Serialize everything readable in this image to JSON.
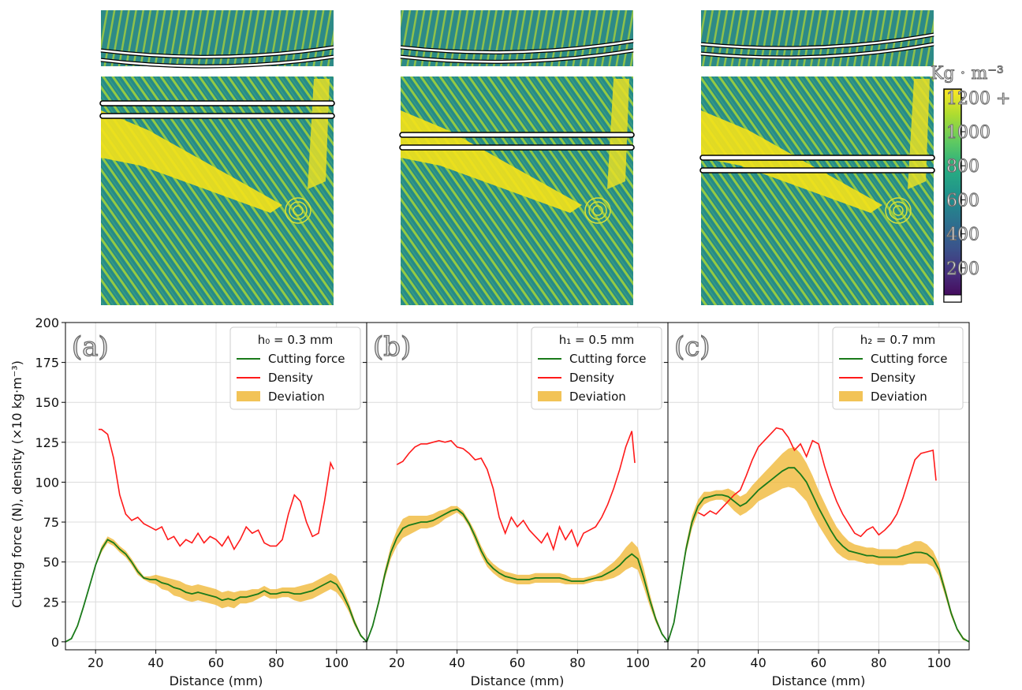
{
  "figure": {
    "ylabel": "Cutting force (N), density (×10 kg·m⁻³)",
    "colorbar": {
      "unit": "Kg · m⁻³",
      "ticks": [
        "1200 +",
        "1000",
        "800",
        "600",
        "400",
        "200"
      ],
      "tick_values": [
        1200,
        1000,
        800,
        600,
        400,
        200
      ],
      "range": [
        0,
        1250
      ],
      "colormap": "viridis"
    },
    "colors": {
      "cutting_force": "#1a7a1a",
      "density": "#ff1a1a",
      "deviation": "#f0b93a"
    }
  },
  "chart_data": [
    {
      "type": "line",
      "panel_label": "(a)",
      "legend_title": "h₀ = 0.3 mm",
      "legend": [
        "Cutting force",
        "Density",
        "Deviation"
      ],
      "legend_position": "top-right",
      "xlabel": "Distance (mm)",
      "xlim": [
        10,
        110
      ],
      "ylim": [
        -5,
        200
      ],
      "xticks": [
        20,
        40,
        60,
        80,
        100
      ],
      "yticks": [
        0,
        25,
        50,
        75,
        100,
        125,
        150,
        175,
        200
      ],
      "grid": true,
      "series": [
        {
          "name": "Cutting force",
          "x": [
            10,
            12,
            14,
            16,
            18,
            20,
            22,
            24,
            26,
            28,
            30,
            32,
            34,
            36,
            38,
            40,
            42,
            44,
            46,
            48,
            50,
            52,
            54,
            56,
            58,
            60,
            62,
            64,
            66,
            68,
            70,
            72,
            74,
            76,
            78,
            80,
            82,
            84,
            86,
            88,
            90,
            92,
            94,
            96,
            98,
            100,
            102,
            104,
            106,
            108,
            110
          ],
          "y": [
            0,
            2,
            10,
            22,
            35,
            48,
            58,
            64,
            62,
            58,
            55,
            50,
            44,
            40,
            39,
            39,
            37,
            36,
            34,
            33,
            31,
            30,
            31,
            30,
            29,
            28,
            26,
            27,
            26,
            28,
            28,
            29,
            30,
            32,
            30,
            30,
            31,
            31,
            30,
            30,
            31,
            32,
            34,
            36,
            38,
            36,
            30,
            22,
            12,
            4,
            0
          ],
          "dev": [
            0,
            0,
            1,
            1,
            1,
            1,
            2,
            2,
            2,
            2,
            2,
            2,
            2,
            1,
            2,
            3,
            4,
            4,
            5,
            5,
            5,
            5,
            5,
            5,
            5,
            5,
            5,
            5,
            5,
            4,
            4,
            4,
            3,
            3,
            3,
            3,
            3,
            3,
            4,
            5,
            5,
            5,
            5,
            5,
            5,
            5,
            4,
            3,
            2,
            1,
            0
          ]
        },
        {
          "name": "Density",
          "x": [
            21,
            22,
            24,
            26,
            28,
            30,
            32,
            34,
            36,
            38,
            40,
            42,
            44,
            46,
            48,
            50,
            52,
            54,
            56,
            58,
            60,
            62,
            64,
            66,
            68,
            70,
            72,
            74,
            76,
            78,
            80,
            82,
            84,
            86,
            88,
            90,
            92,
            94,
            96,
            98,
            99
          ],
          "y": [
            133,
            133,
            130,
            115,
            92,
            80,
            76,
            78,
            74,
            72,
            70,
            72,
            64,
            66,
            60,
            64,
            62,
            68,
            62,
            66,
            64,
            60,
            66,
            58,
            64,
            72,
            68,
            70,
            62,
            60,
            60,
            64,
            80,
            92,
            88,
            75,
            66,
            68,
            88,
            112,
            108
          ]
        }
      ]
    },
    {
      "type": "line",
      "panel_label": "(b)",
      "legend_title": "h₁ = 0.5 mm",
      "legend": [
        "Cutting force",
        "Density",
        "Deviation"
      ],
      "legend_position": "top-right",
      "xlabel": "Distance (mm)",
      "xlim": [
        10,
        110
      ],
      "ylim": [
        -5,
        200
      ],
      "xticks": [
        20,
        40,
        60,
        80,
        100
      ],
      "grid": true,
      "series": [
        {
          "name": "Cutting force",
          "x": [
            10,
            12,
            14,
            16,
            18,
            20,
            22,
            24,
            26,
            28,
            30,
            32,
            34,
            36,
            38,
            40,
            42,
            44,
            46,
            48,
            50,
            52,
            54,
            56,
            58,
            60,
            62,
            64,
            66,
            68,
            70,
            72,
            74,
            76,
            78,
            80,
            82,
            84,
            86,
            88,
            90,
            92,
            94,
            96,
            98,
            100,
            102,
            104,
            106,
            108,
            110
          ],
          "y": [
            0,
            10,
            25,
            42,
            56,
            65,
            71,
            73,
            74,
            75,
            75,
            76,
            78,
            80,
            82,
            83,
            80,
            74,
            66,
            57,
            50,
            46,
            43,
            41,
            40,
            39,
            39,
            39,
            40,
            40,
            40,
            40,
            40,
            39,
            38,
            38,
            38,
            39,
            40,
            41,
            43,
            45,
            48,
            52,
            55,
            52,
            40,
            26,
            14,
            5,
            0
          ],
          "dev": [
            0,
            1,
            2,
            3,
            4,
            5,
            6,
            6,
            5,
            4,
            4,
            4,
            4,
            3,
            3,
            2,
            2,
            2,
            3,
            3,
            3,
            3,
            3,
            3,
            3,
            3,
            3,
            3,
            3,
            3,
            3,
            3,
            3,
            3,
            2,
            2,
            2,
            2,
            2,
            3,
            4,
            5,
            6,
            7,
            8,
            7,
            6,
            4,
            2,
            1,
            0
          ]
        },
        {
          "name": "Density",
          "x": [
            20,
            22,
            24,
            26,
            28,
            30,
            32,
            34,
            36,
            38,
            40,
            42,
            44,
            46,
            48,
            50,
            52,
            54,
            56,
            58,
            60,
            62,
            64,
            66,
            68,
            70,
            72,
            74,
            76,
            78,
            80,
            82,
            84,
            86,
            88,
            90,
            92,
            94,
            96,
            98,
            99
          ],
          "y": [
            111,
            113,
            118,
            122,
            124,
            124,
            125,
            126,
            125,
            126,
            122,
            121,
            118,
            114,
            115,
            108,
            96,
            78,
            68,
            78,
            72,
            76,
            70,
            66,
            62,
            68,
            58,
            72,
            64,
            70,
            60,
            68,
            70,
            72,
            78,
            86,
            96,
            108,
            122,
            132,
            112
          ]
        }
      ]
    },
    {
      "type": "line",
      "panel_label": "(c)",
      "legend_title": "h₂ = 0.7 mm",
      "legend": [
        "Cutting force",
        "Density",
        "Deviation"
      ],
      "legend_position": "top-right",
      "xlabel": "Distance (mm)",
      "xlim": [
        10,
        110
      ],
      "ylim": [
        -5,
        200
      ],
      "xticks": [
        20,
        40,
        60,
        80,
        100
      ],
      "grid": true,
      "series": [
        {
          "name": "Cutting force",
          "x": [
            10,
            12,
            14,
            16,
            18,
            20,
            22,
            24,
            26,
            28,
            30,
            32,
            34,
            36,
            38,
            40,
            42,
            44,
            46,
            48,
            50,
            52,
            54,
            56,
            58,
            60,
            62,
            64,
            66,
            68,
            70,
            72,
            74,
            76,
            78,
            80,
            82,
            84,
            86,
            88,
            90,
            92,
            94,
            96,
            98,
            100,
            102,
            104,
            106,
            108,
            110
          ],
          "y": [
            0,
            12,
            35,
            58,
            75,
            85,
            90,
            91,
            92,
            92,
            91,
            88,
            85,
            87,
            91,
            95,
            98,
            101,
            104,
            107,
            109,
            109,
            105,
            100,
            92,
            84,
            77,
            70,
            64,
            60,
            57,
            56,
            55,
            54,
            54,
            53,
            53,
            53,
            53,
            54,
            55,
            56,
            56,
            55,
            52,
            45,
            32,
            18,
            8,
            2,
            0
          ],
          "dev": [
            0,
            1,
            2,
            3,
            4,
            4,
            4,
            3,
            3,
            3,
            5,
            6,
            6,
            6,
            7,
            7,
            8,
            9,
            10,
            11,
            12,
            13,
            13,
            12,
            12,
            11,
            10,
            9,
            8,
            7,
            6,
            5,
            5,
            5,
            5,
            5,
            5,
            5,
            5,
            6,
            6,
            7,
            7,
            6,
            5,
            4,
            3,
            2,
            1,
            1,
            0
          ]
        },
        {
          "name": "Density",
          "x": [
            20,
            22,
            24,
            26,
            28,
            30,
            32,
            34,
            36,
            38,
            40,
            42,
            44,
            46,
            48,
            50,
            52,
            54,
            56,
            58,
            60,
            62,
            64,
            66,
            68,
            70,
            72,
            74,
            76,
            78,
            80,
            82,
            84,
            86,
            88,
            90,
            92,
            94,
            96,
            98,
            99
          ],
          "y": [
            81,
            79,
            82,
            80,
            84,
            88,
            92,
            95,
            104,
            114,
            122,
            126,
            130,
            134,
            133,
            128,
            120,
            124,
            116,
            126,
            124,
            110,
            98,
            88,
            80,
            74,
            68,
            66,
            70,
            72,
            67,
            70,
            74,
            80,
            90,
            102,
            114,
            118,
            119,
            120,
            101
          ]
        }
      ]
    }
  ]
}
